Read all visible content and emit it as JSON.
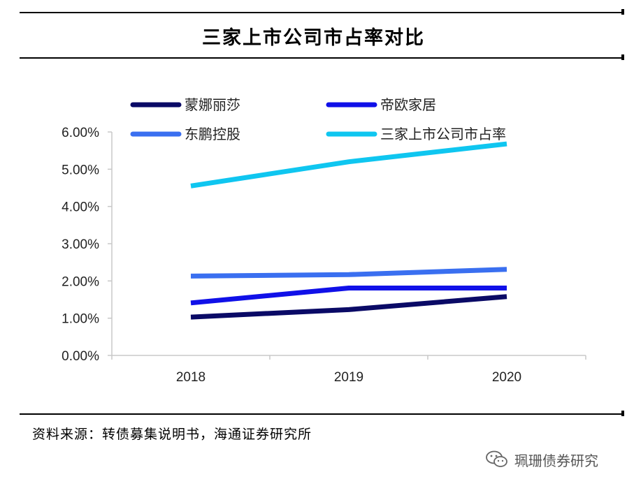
{
  "colors": {
    "mengnalisha": "#0a0a66",
    "diou": "#1010e8",
    "dongpeng": "#3a6ff0",
    "market": "#0fc6f0",
    "axis": "#c8c8c8"
  },
  "chart_data": {
    "type": "line",
    "title": "三家上市公司市占率对比",
    "categories": [
      "2018",
      "2019",
      "2020"
    ],
    "series": [
      {
        "name": "蒙娜丽莎",
        "values": [
          1.03,
          1.23,
          1.58
        ],
        "color_key": "mengnalisha"
      },
      {
        "name": "帝欧家居",
        "values": [
          1.41,
          1.81,
          1.81
        ],
        "color_key": "diou"
      },
      {
        "name": "东鹏控股",
        "values": [
          2.13,
          2.17,
          2.31
        ],
        "color_key": "dongpeng"
      },
      {
        "name": "三家上市公司市占率",
        "values": [
          4.55,
          5.2,
          5.68
        ],
        "color_key": "market"
      }
    ],
    "ylim": [
      0,
      6
    ],
    "yticks": [
      0,
      1,
      2,
      3,
      4,
      5,
      6
    ],
    "ytick_labels": [
      "0.00%",
      "1.00%",
      "2.00%",
      "3.00%",
      "4.00%",
      "5.00%",
      "6.00%"
    ],
    "xlabel": "",
    "ylabel": "",
    "legend_position": "top"
  },
  "source_note": "资料来源：转债募集说明书，海通证券研究所",
  "watermark": {
    "text": "珮珊债券研究",
    "icon": "wechat-icon"
  }
}
